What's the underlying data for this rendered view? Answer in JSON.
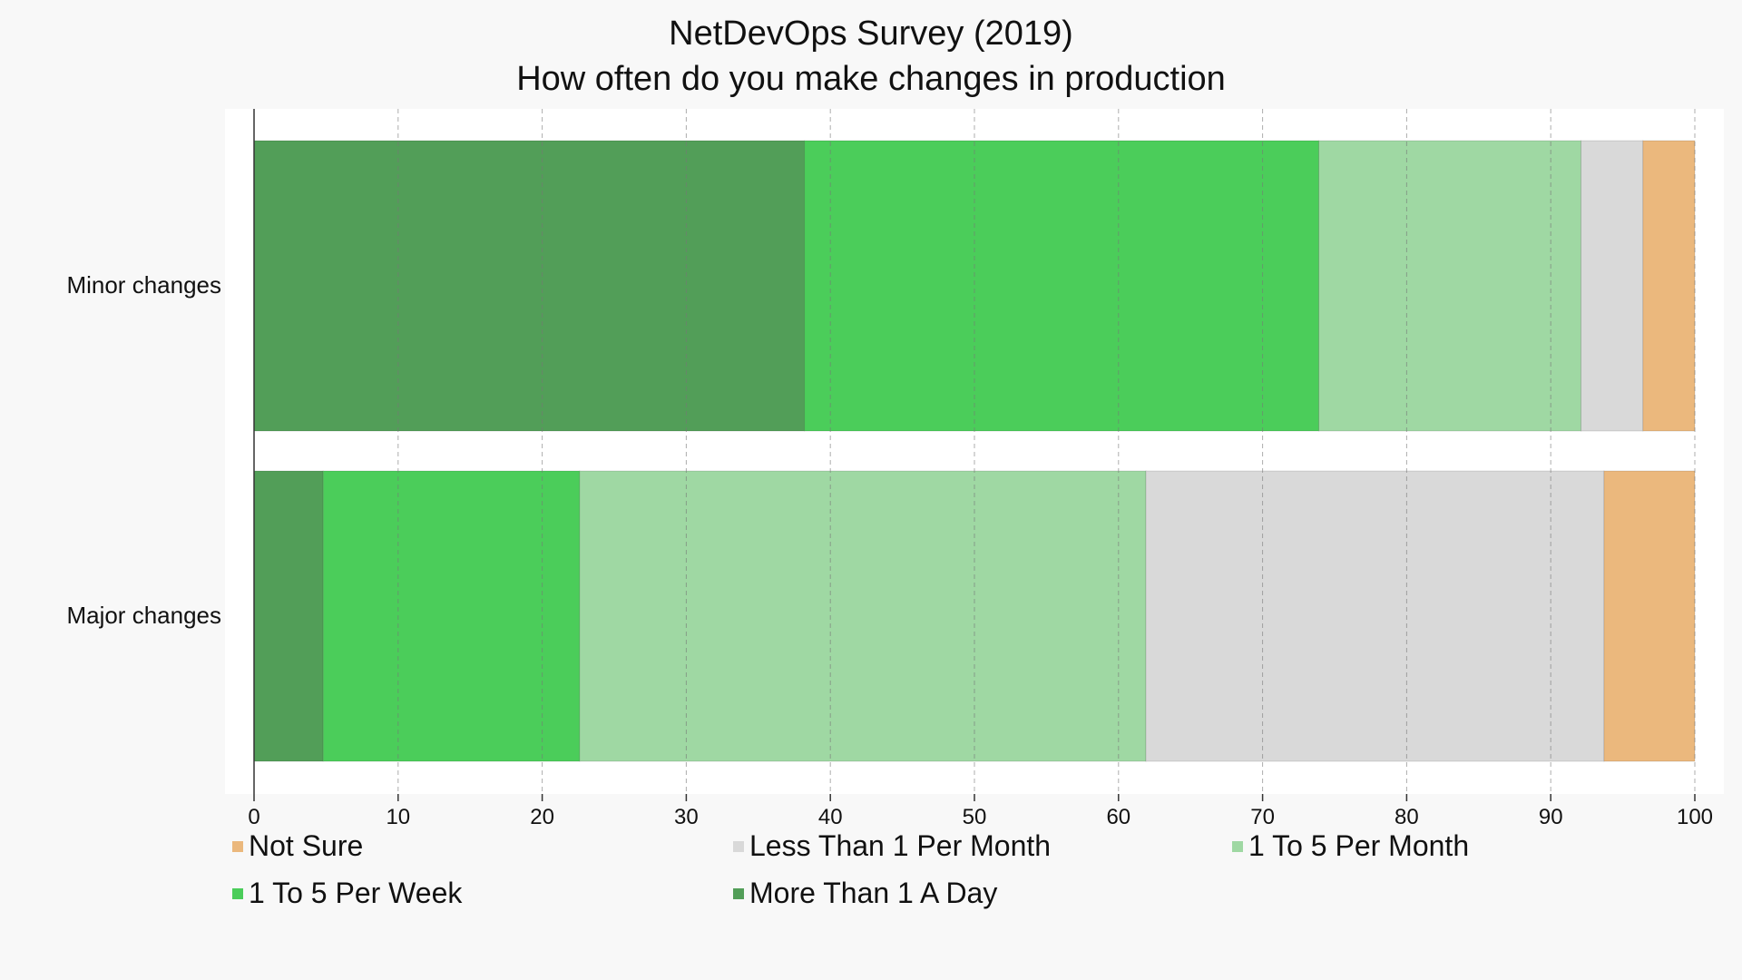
{
  "chart_data": {
    "type": "bar",
    "orientation": "horizontal",
    "stacked": true,
    "title": "NetDevOps Survey (2019)",
    "subtitle": "How often do you make changes in production",
    "categories": [
      "Minor changes",
      "Major changes"
    ],
    "series": [
      {
        "name": "More Than 1 A Day",
        "color": "#529e58",
        "values": [
          38.2,
          4.8
        ]
      },
      {
        "name": "1 To 5 Per Week",
        "color": "#4bcd5a",
        "values": [
          35.7,
          17.8
        ]
      },
      {
        "name": "1 To 5 Per Month",
        "color": "#9fd8a3",
        "values": [
          18.2,
          39.3
        ]
      },
      {
        "name": "Less Than 1 Per Month",
        "color": "#d9d9d9",
        "values": [
          4.3,
          31.8
        ]
      },
      {
        "name": "Not Sure",
        "color": "#ebb87d",
        "values": [
          3.6,
          6.3
        ]
      }
    ],
    "xlim": [
      0,
      100
    ],
    "xticks": [
      0,
      10,
      20,
      30,
      40,
      50,
      60,
      70,
      80,
      90,
      100
    ],
    "grid": true,
    "legend_position": "bottom",
    "legend_order": [
      "Not Sure",
      "Less Than 1 Per Month",
      "1 To 5 Per Month",
      "1 To 5 Per Week",
      "More Than 1 A Day"
    ]
  }
}
